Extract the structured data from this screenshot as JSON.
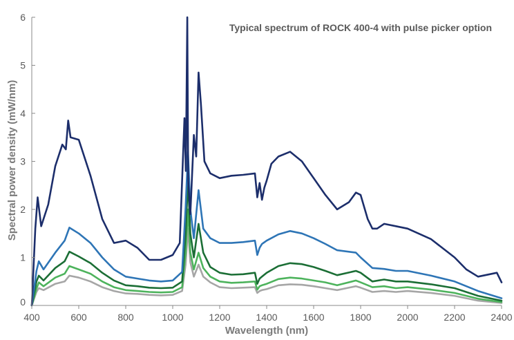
{
  "chart_data": {
    "type": "line",
    "title": "Typical spectrum of ROCK 400-4 with pulse picker option",
    "xlabel": "Wavelength (nm)",
    "ylabel": "Spectral power density (mW/nm)",
    "xlim": [
      400,
      2400
    ],
    "ylim": [
      0,
      6
    ],
    "xticks": [
      400,
      600,
      800,
      1000,
      1200,
      1400,
      1600,
      1800,
      2000,
      2200,
      2400
    ],
    "yticks": [
      0,
      1,
      2,
      3,
      4,
      5,
      6
    ],
    "grid": false,
    "legend": "none",
    "series": [
      {
        "color": "#a6a6a6",
        "x": [
          400,
          420,
          430,
          450,
          500,
          540,
          560,
          600,
          650,
          700,
          750,
          800,
          850,
          900,
          950,
          1000,
          1040,
          1055,
          1065,
          1075,
          1090,
          1110,
          1130,
          1160,
          1200,
          1250,
          1300,
          1350,
          1360,
          1370,
          1380,
          1400,
          1450,
          1500,
          1550,
          1600,
          1650,
          1700,
          1780,
          1800,
          1850,
          1900,
          1950,
          2000,
          2100,
          2200,
          2300,
          2400
        ],
        "y": [
          0.0,
          0.28,
          0.36,
          0.32,
          0.45,
          0.5,
          0.62,
          0.58,
          0.5,
          0.38,
          0.3,
          0.25,
          0.24,
          0.22,
          0.21,
          0.22,
          0.3,
          0.85,
          1.6,
          0.9,
          0.6,
          0.85,
          0.6,
          0.48,
          0.38,
          0.36,
          0.37,
          0.38,
          0.26,
          0.3,
          0.32,
          0.34,
          0.42,
          0.44,
          0.43,
          0.4,
          0.36,
          0.32,
          0.4,
          0.37,
          0.28,
          0.3,
          0.28,
          0.3,
          0.26,
          0.2,
          0.1,
          0.05
        ]
      },
      {
        "color": "#4db35c",
        "x": [
          400,
          420,
          430,
          450,
          500,
          540,
          560,
          600,
          650,
          700,
          750,
          800,
          850,
          900,
          950,
          1000,
          1040,
          1055,
          1065,
          1075,
          1090,
          1110,
          1130,
          1160,
          1200,
          1250,
          1300,
          1350,
          1360,
          1370,
          1380,
          1400,
          1450,
          1500,
          1550,
          1600,
          1650,
          1700,
          1780,
          1800,
          1850,
          1900,
          1950,
          2000,
          2100,
          2200,
          2300,
          2400
        ],
        "y": [
          0.0,
          0.35,
          0.48,
          0.4,
          0.58,
          0.66,
          0.82,
          0.75,
          0.66,
          0.5,
          0.38,
          0.32,
          0.3,
          0.28,
          0.27,
          0.28,
          0.38,
          1.1,
          2.0,
          1.1,
          0.75,
          1.1,
          0.78,
          0.6,
          0.5,
          0.47,
          0.48,
          0.5,
          0.33,
          0.4,
          0.42,
          0.45,
          0.55,
          0.58,
          0.56,
          0.52,
          0.48,
          0.42,
          0.52,
          0.48,
          0.38,
          0.4,
          0.36,
          0.38,
          0.33,
          0.26,
          0.14,
          0.07
        ]
      },
      {
        "color": "#1b6e35",
        "x": [
          400,
          420,
          430,
          450,
          500,
          540,
          560,
          600,
          650,
          700,
          750,
          800,
          850,
          900,
          950,
          1000,
          1040,
          1055,
          1065,
          1075,
          1090,
          1110,
          1130,
          1160,
          1200,
          1250,
          1300,
          1350,
          1360,
          1370,
          1380,
          1400,
          1450,
          1500,
          1550,
          1600,
          1650,
          1700,
          1780,
          1800,
          1850,
          1900,
          1950,
          2000,
          2100,
          2200,
          2300,
          2400
        ],
        "y": [
          0.0,
          0.5,
          0.62,
          0.52,
          0.78,
          0.92,
          1.12,
          1.02,
          0.88,
          0.68,
          0.52,
          0.42,
          0.4,
          0.37,
          0.36,
          0.37,
          0.5,
          1.5,
          2.6,
          1.5,
          1.0,
          1.7,
          1.1,
          0.8,
          0.68,
          0.64,
          0.65,
          0.68,
          0.45,
          0.56,
          0.6,
          0.68,
          0.82,
          0.88,
          0.86,
          0.8,
          0.72,
          0.63,
          0.72,
          0.68,
          0.5,
          0.54,
          0.5,
          0.5,
          0.44,
          0.36,
          0.2,
          0.1
        ]
      },
      {
        "color": "#2e75b6",
        "x": [
          400,
          420,
          430,
          450,
          500,
          540,
          560,
          600,
          650,
          700,
          750,
          800,
          850,
          900,
          950,
          1000,
          1040,
          1055,
          1065,
          1075,
          1090,
          1110,
          1130,
          1160,
          1200,
          1250,
          1300,
          1350,
          1360,
          1370,
          1380,
          1400,
          1450,
          1500,
          1550,
          1600,
          1650,
          1700,
          1780,
          1800,
          1850,
          1900,
          1950,
          2000,
          2100,
          2200,
          2300,
          2400
        ],
        "y": [
          0.0,
          0.72,
          0.92,
          0.75,
          1.1,
          1.35,
          1.62,
          1.5,
          1.3,
          1.0,
          0.75,
          0.6,
          0.56,
          0.52,
          0.5,
          0.52,
          0.7,
          2.05,
          3.2,
          2.0,
          1.4,
          2.4,
          1.6,
          1.4,
          1.3,
          1.3,
          1.32,
          1.35,
          1.05,
          1.2,
          1.28,
          1.35,
          1.48,
          1.55,
          1.5,
          1.4,
          1.28,
          1.15,
          1.1,
          1.0,
          0.78,
          0.76,
          0.72,
          0.72,
          0.62,
          0.5,
          0.3,
          0.15
        ]
      },
      {
        "color": "#1c2e6b",
        "x": [
          400,
          415,
          425,
          440,
          470,
          500,
          530,
          545,
          555,
          565,
          600,
          650,
          700,
          750,
          800,
          850,
          900,
          950,
          1000,
          1030,
          1050,
          1056,
          1062,
          1066,
          1075,
          1090,
          1100,
          1110,
          1120,
          1135,
          1160,
          1200,
          1250,
          1300,
          1350,
          1360,
          1370,
          1380,
          1390,
          1400,
          1420,
          1450,
          1500,
          1550,
          1600,
          1650,
          1700,
          1750,
          1780,
          1800,
          1830,
          1850,
          1870,
          1900,
          1950,
          2000,
          2100,
          2200,
          2250,
          2300,
          2350,
          2380,
          2400
        ],
        "y": [
          0.0,
          1.6,
          2.25,
          1.65,
          2.1,
          2.9,
          3.35,
          3.25,
          3.85,
          3.5,
          3.45,
          2.7,
          1.8,
          1.3,
          1.35,
          1.2,
          0.95,
          0.95,
          1.05,
          1.3,
          3.9,
          2.8,
          6.0,
          2.6,
          1.9,
          3.55,
          3.1,
          4.85,
          4.2,
          3.0,
          2.75,
          2.65,
          2.7,
          2.72,
          2.75,
          2.25,
          2.55,
          2.2,
          2.45,
          2.6,
          2.95,
          3.1,
          3.2,
          3.0,
          2.65,
          2.3,
          2.0,
          2.15,
          2.35,
          2.3,
          1.8,
          1.6,
          1.6,
          1.7,
          1.65,
          1.6,
          1.38,
          1.0,
          0.75,
          0.6,
          0.65,
          0.68,
          0.48
        ]
      }
    ]
  }
}
